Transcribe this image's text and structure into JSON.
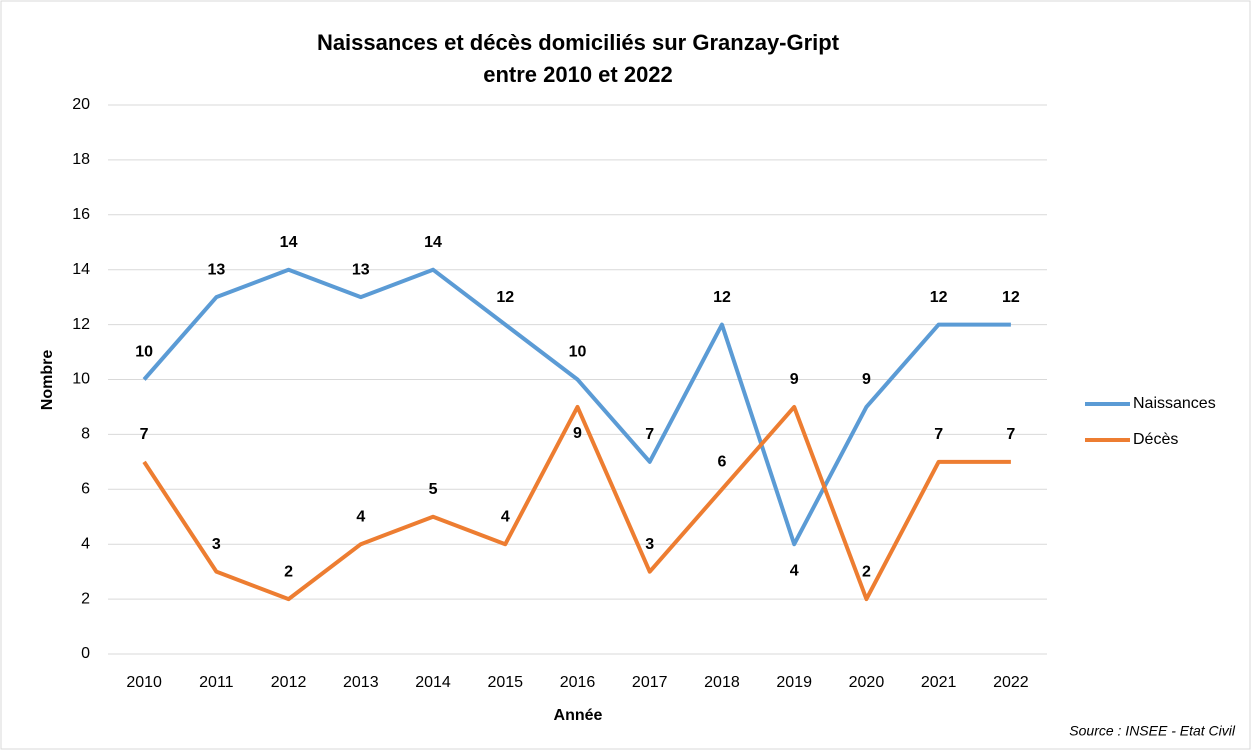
{
  "chart_data": {
    "type": "line",
    "title": [
      "Naissances et décès domiciliés sur Granzay-Gript",
      "entre 2010 et 2022"
    ],
    "x_label": "Année",
    "y_label": "Nombre",
    "source": "Source : INSEE - Etat Civil",
    "categories": [
      "2010",
      "2011",
      "2012",
      "2013",
      "2014",
      "2015",
      "2016",
      "2017",
      "2018",
      "2019",
      "2020",
      "2021",
      "2022"
    ],
    "series": [
      {
        "name": "Naissances",
        "color": "#5b9bd5",
        "values": [
          10,
          13,
          14,
          13,
          14,
          12,
          10,
          7,
          12,
          4,
          9,
          12,
          12
        ]
      },
      {
        "name": "Décès",
        "color": "#ed7d31",
        "values": [
          7,
          3,
          2,
          4,
          5,
          4,
          9,
          3,
          6,
          9,
          2,
          7,
          7
        ]
      }
    ],
    "ylim": [
      0,
      20
    ],
    "yticks": [
      0,
      2,
      4,
      6,
      8,
      10,
      12,
      14,
      16,
      18,
      20
    ],
    "grid": true,
    "legend": "right"
  }
}
